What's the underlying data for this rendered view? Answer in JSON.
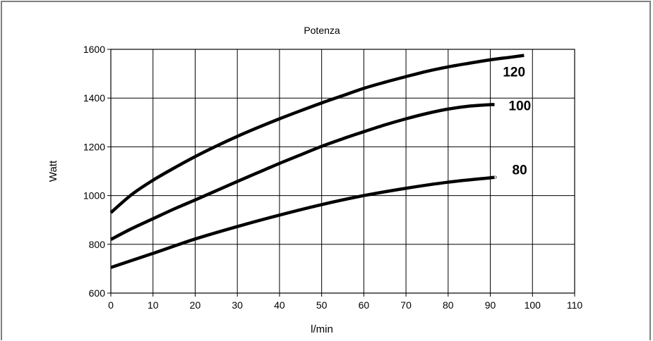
{
  "chart_data": {
    "type": "line",
    "title": "Potenza",
    "xlabel": "l/min",
    "ylabel": "Watt",
    "xlim": [
      0,
      110
    ],
    "ylim": [
      600,
      1600
    ],
    "x_ticks": [
      "0",
      "10",
      "20",
      "30",
      "40",
      "50",
      "60",
      "70",
      "80",
      "90",
      "100",
      "110"
    ],
    "y_ticks": [
      "600",
      "800",
      "1000",
      "1200",
      "1400",
      "1600"
    ],
    "grid": true,
    "series": [
      {
        "name": "120",
        "x": [
          0,
          5,
          10,
          15,
          20,
          25,
          30,
          35,
          40,
          45,
          50,
          55,
          60,
          65,
          70,
          75,
          80,
          85,
          90,
          95,
          98
        ],
        "y": [
          930,
          1005,
          1063,
          1113,
          1160,
          1203,
          1243,
          1280,
          1315,
          1348,
          1380,
          1410,
          1440,
          1465,
          1488,
          1510,
          1528,
          1543,
          1557,
          1568,
          1575
        ]
      },
      {
        "name": "100",
        "x": [
          0,
          5,
          10,
          15,
          20,
          25,
          30,
          35,
          40,
          45,
          50,
          55,
          60,
          65,
          70,
          75,
          80,
          85,
          90,
          91
        ],
        "y": [
          820,
          865,
          905,
          945,
          982,
          1020,
          1058,
          1095,
          1132,
          1167,
          1202,
          1233,
          1262,
          1290,
          1315,
          1337,
          1355,
          1367,
          1373,
          1373
        ]
      },
      {
        "name": "80",
        "x": [
          0,
          10,
          20,
          30,
          40,
          50,
          60,
          70,
          80,
          90,
          91
        ],
        "y": [
          705,
          763,
          822,
          873,
          920,
          963,
          1000,
          1030,
          1055,
          1073,
          1075
        ]
      }
    ]
  }
}
